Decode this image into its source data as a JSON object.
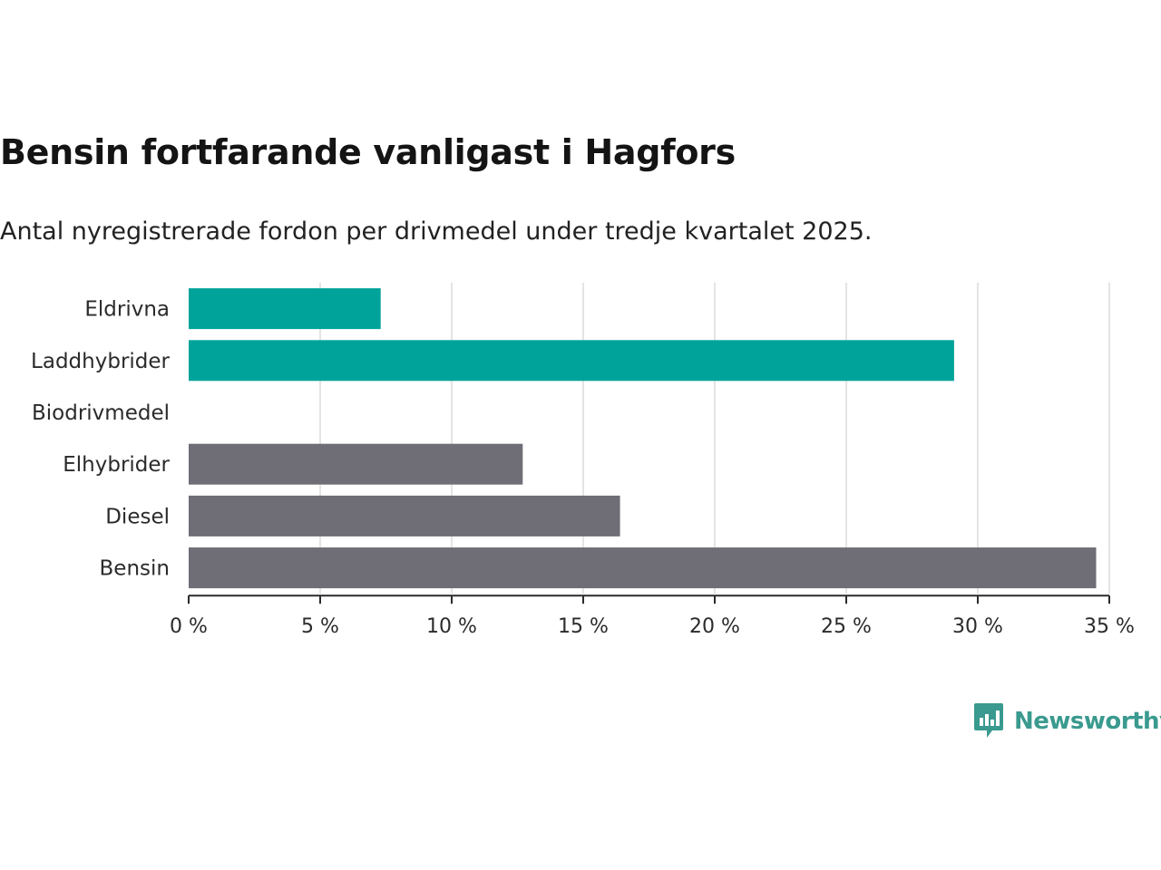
{
  "header": {
    "title": "Bensin fortfarande vanligast i Hagfors",
    "subtitle": "Antal nyregistrerade fordon per drivmedel under tredje kvartalet 2025."
  },
  "chart_data": {
    "type": "bar",
    "orientation": "horizontal",
    "categories": [
      "Eldrivna",
      "Laddhybrider",
      "Biodrivmedel",
      "Elhybrider",
      "Diesel",
      "Bensin"
    ],
    "values": [
      7.3,
      29.1,
      0,
      12.7,
      16.4,
      34.5
    ],
    "unit": "%",
    "xlim": [
      0,
      35
    ],
    "x_ticks": [
      0,
      5,
      10,
      15,
      20,
      25,
      30,
      35
    ],
    "x_tick_labels": [
      "0 %",
      "5 %",
      "10 %",
      "15 %",
      "20 %",
      "25 %",
      "30 %",
      "35 %"
    ],
    "grid": true,
    "bar_colors": [
      "#00a399",
      "#00a399",
      "#6f6e76",
      "#6f6e76",
      "#6f6e76",
      "#6f6e76"
    ]
  },
  "brand": {
    "name": "Newsworthy",
    "icon": "newsworthy-logo-icon",
    "color": "#3a9a8f"
  }
}
